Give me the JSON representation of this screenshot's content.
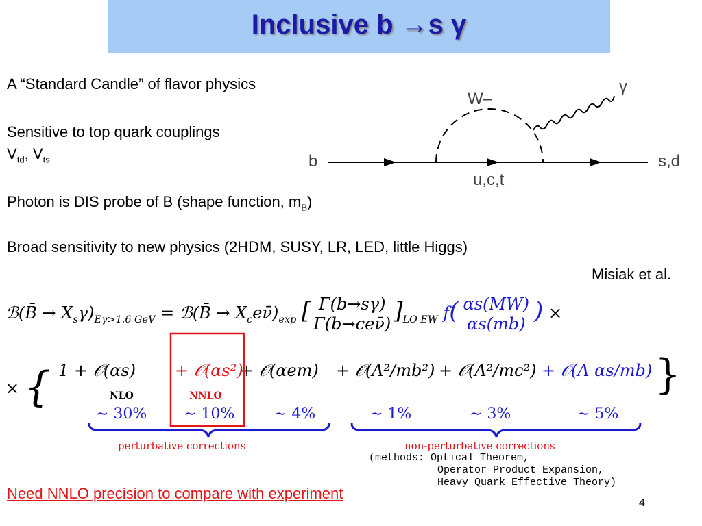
{
  "header": {
    "title": "Inclusive b →s γ"
  },
  "bullets": {
    "candle": "A “Standard Candle”  of flavor physics",
    "couplings": "Sensitive to top quark couplings",
    "ckm": [
      "V",
      "td",
      ", V",
      "ts"
    ],
    "photon": [
      "Photon is DIS probe of B (shape function, m",
      "B",
      ")"
    ],
    "broad": "Broad sensitivity to new physics (2HDM, SUSY, LR, LED, little Higgs)"
  },
  "citation": "Misiak et al.",
  "diagram": {
    "w": "W–",
    "gamma": "γ",
    "b": "b",
    "out": "s,d",
    "loop": "u,c,t"
  },
  "formula": {
    "line1": {
      "lhs": "ℬ(B̄ → X",
      "lhs_sub": "s",
      "lhs_end": "γ)",
      "cut": "Eγ>1.6 GeV",
      "eq": " = ℬ(B̄ → X",
      "c_sub": "c",
      "sl_end": "eν̄)",
      "exp": "exp",
      "ratio_num": "Γ(b→sγ)",
      "ratio_den": "Γ(b→ceν̄)",
      "lo": "LO EW",
      "f": "f",
      "f_num": "αs(MW)",
      "f_den": "αs(mb)",
      "times": "×"
    },
    "line2": {
      "lead": "×",
      "terms": [
        {
          "expr": "1 + 𝒪(αs)",
          "label": "NLO",
          "pct": "∼ 30%"
        },
        {
          "expr": "+ 𝒪(αs²)",
          "label": "NNLO",
          "pct": "∼ 10%"
        },
        {
          "expr": "+ 𝒪(αem)",
          "pct": "∼ 4%"
        },
        {
          "expr": "+ 𝒪(Λ²/mb²)",
          "pct": "∼ 1%"
        },
        {
          "expr": "+ 𝒪(Λ²/mc²)",
          "pct": "∼ 3%"
        },
        {
          "expr": "+ 𝒪(Λ αs/mb)",
          "pct": "∼ 5%"
        }
      ]
    },
    "perturbative": "perturbative corrections",
    "nonperturbative": "non-perturbative corrections",
    "methods": [
      "(methods: Optical Theorem,",
      "Operator Product Expansion,",
      "Heavy Quark Effective Theory)"
    ]
  },
  "footer": {
    "conclusion": "Need NNLO precision to compare with experiment",
    "page": "4"
  }
}
